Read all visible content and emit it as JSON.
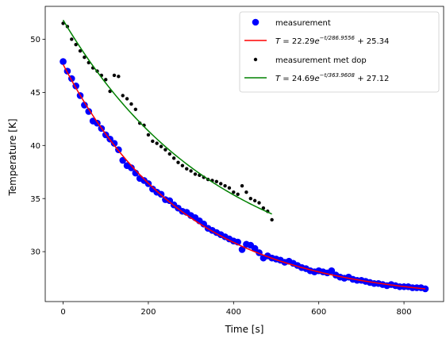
{
  "chart_data": {
    "type": "scatter",
    "title": "",
    "xlabel": "Time [s]",
    "ylabel": "Temperature [K]",
    "xlim": [
      -42,
      893
    ],
    "ylim": [
      25.3,
      53.1
    ],
    "xticks": [
      0,
      200,
      400,
      600,
      800
    ],
    "yticks": [
      30,
      35,
      40,
      45,
      50
    ],
    "xtick_labels": [
      "0",
      "200",
      "400",
      "600",
      "800"
    ],
    "ytick_labels": [
      "30",
      "35",
      "40",
      "45",
      "50"
    ],
    "grid": false,
    "legend_position": "upper right",
    "series": [
      {
        "name": "measurement",
        "kind": "points",
        "marker": "large-circle",
        "color": "#0000ff",
        "x": [
          0,
          10,
          20,
          30,
          40,
          50,
          60,
          70,
          80,
          90,
          100,
          110,
          120,
          130,
          140,
          150,
          160,
          170,
          180,
          190,
          200,
          210,
          220,
          230,
          240,
          250,
          260,
          270,
          280,
          290,
          300,
          310,
          320,
          330,
          340,
          350,
          360,
          370,
          380,
          390,
          400,
          410,
          420,
          430,
          440,
          450,
          460,
          470,
          480,
          490,
          500,
          510,
          520,
          530,
          540,
          550,
          560,
          570,
          580,
          590,
          600,
          610,
          620,
          630,
          640,
          650,
          660,
          670,
          680,
          690,
          700,
          710,
          720,
          730,
          740,
          750,
          760,
          770,
          780,
          790,
          800,
          810,
          820,
          830,
          840,
          850
        ],
        "y": [
          47.9,
          47.0,
          46.3,
          45.6,
          44.7,
          43.8,
          43.2,
          42.3,
          42.1,
          41.6,
          41.0,
          40.6,
          40.2,
          39.6,
          38.6,
          38.1,
          37.9,
          37.4,
          36.9,
          36.7,
          36.4,
          35.9,
          35.6,
          35.4,
          34.9,
          34.8,
          34.4,
          34.1,
          33.8,
          33.7,
          33.4,
          33.2,
          32.9,
          32.6,
          32.2,
          32.0,
          31.8,
          31.6,
          31.4,
          31.2,
          31.0,
          30.9,
          30.2,
          30.7,
          30.6,
          30.3,
          29.9,
          29.4,
          29.6,
          29.4,
          29.3,
          29.2,
          29.0,
          29.1,
          28.9,
          28.7,
          28.5,
          28.4,
          28.2,
          28.1,
          28.2,
          28.1,
          28.0,
          28.2,
          27.8,
          27.6,
          27.5,
          27.6,
          27.4,
          27.3,
          27.3,
          27.2,
          27.1,
          27.0,
          27.0,
          26.9,
          26.8,
          26.9,
          26.8,
          26.7,
          26.7,
          26.7,
          26.6,
          26.6,
          26.6,
          26.5
        ]
      },
      {
        "name": "T = 22.29e^{-t/286.9556} + 25.34",
        "label_parts": [
          "T",
          " = 22.29",
          "e",
          "−t/286.9556",
          " + 25.34"
        ],
        "kind": "line",
        "color": "#ff0000",
        "fit": {
          "A": 22.29,
          "tau": 286.9556,
          "C": 25.34,
          "t_start": 0,
          "t_end": 850
        }
      },
      {
        "name": "measurement met dop",
        "kind": "points",
        "marker": "small-circle",
        "color": "#000000",
        "x": [
          0,
          10,
          20,
          30,
          40,
          50,
          60,
          70,
          80,
          90,
          100,
          110,
          120,
          130,
          140,
          150,
          160,
          170,
          180,
          190,
          200,
          210,
          220,
          230,
          240,
          250,
          260,
          270,
          280,
          290,
          300,
          310,
          320,
          330,
          340,
          350,
          360,
          370,
          380,
          390,
          400,
          410,
          420,
          430,
          440,
          450,
          460,
          470,
          480,
          490
        ],
        "y": [
          51.5,
          51.2,
          50.0,
          49.5,
          48.9,
          48.3,
          47.8,
          47.3,
          47.0,
          46.6,
          46.2,
          45.1,
          46.6,
          46.5,
          44.7,
          44.4,
          43.9,
          43.4,
          42.1,
          41.9,
          41.0,
          40.4,
          40.2,
          39.9,
          39.6,
          39.2,
          38.8,
          38.4,
          38.1,
          37.8,
          37.6,
          37.3,
          37.2,
          37.0,
          36.8,
          36.7,
          36.6,
          36.4,
          36.2,
          36.0,
          35.6,
          35.4,
          36.2,
          35.6,
          35.0,
          34.8,
          34.6,
          34.1,
          33.8,
          33.0
        ]
      },
      {
        "name": "T = 24.69e^{-t/363.9608} + 27.12",
        "label_parts": [
          "T",
          " = 24.69",
          "e",
          "−t/363.9608",
          " + 27.12"
        ],
        "kind": "line",
        "color": "#008000",
        "fit": {
          "A": 24.69,
          "tau": 363.9608,
          "C": 27.12,
          "t_start": 0,
          "t_end": 490
        }
      }
    ]
  }
}
